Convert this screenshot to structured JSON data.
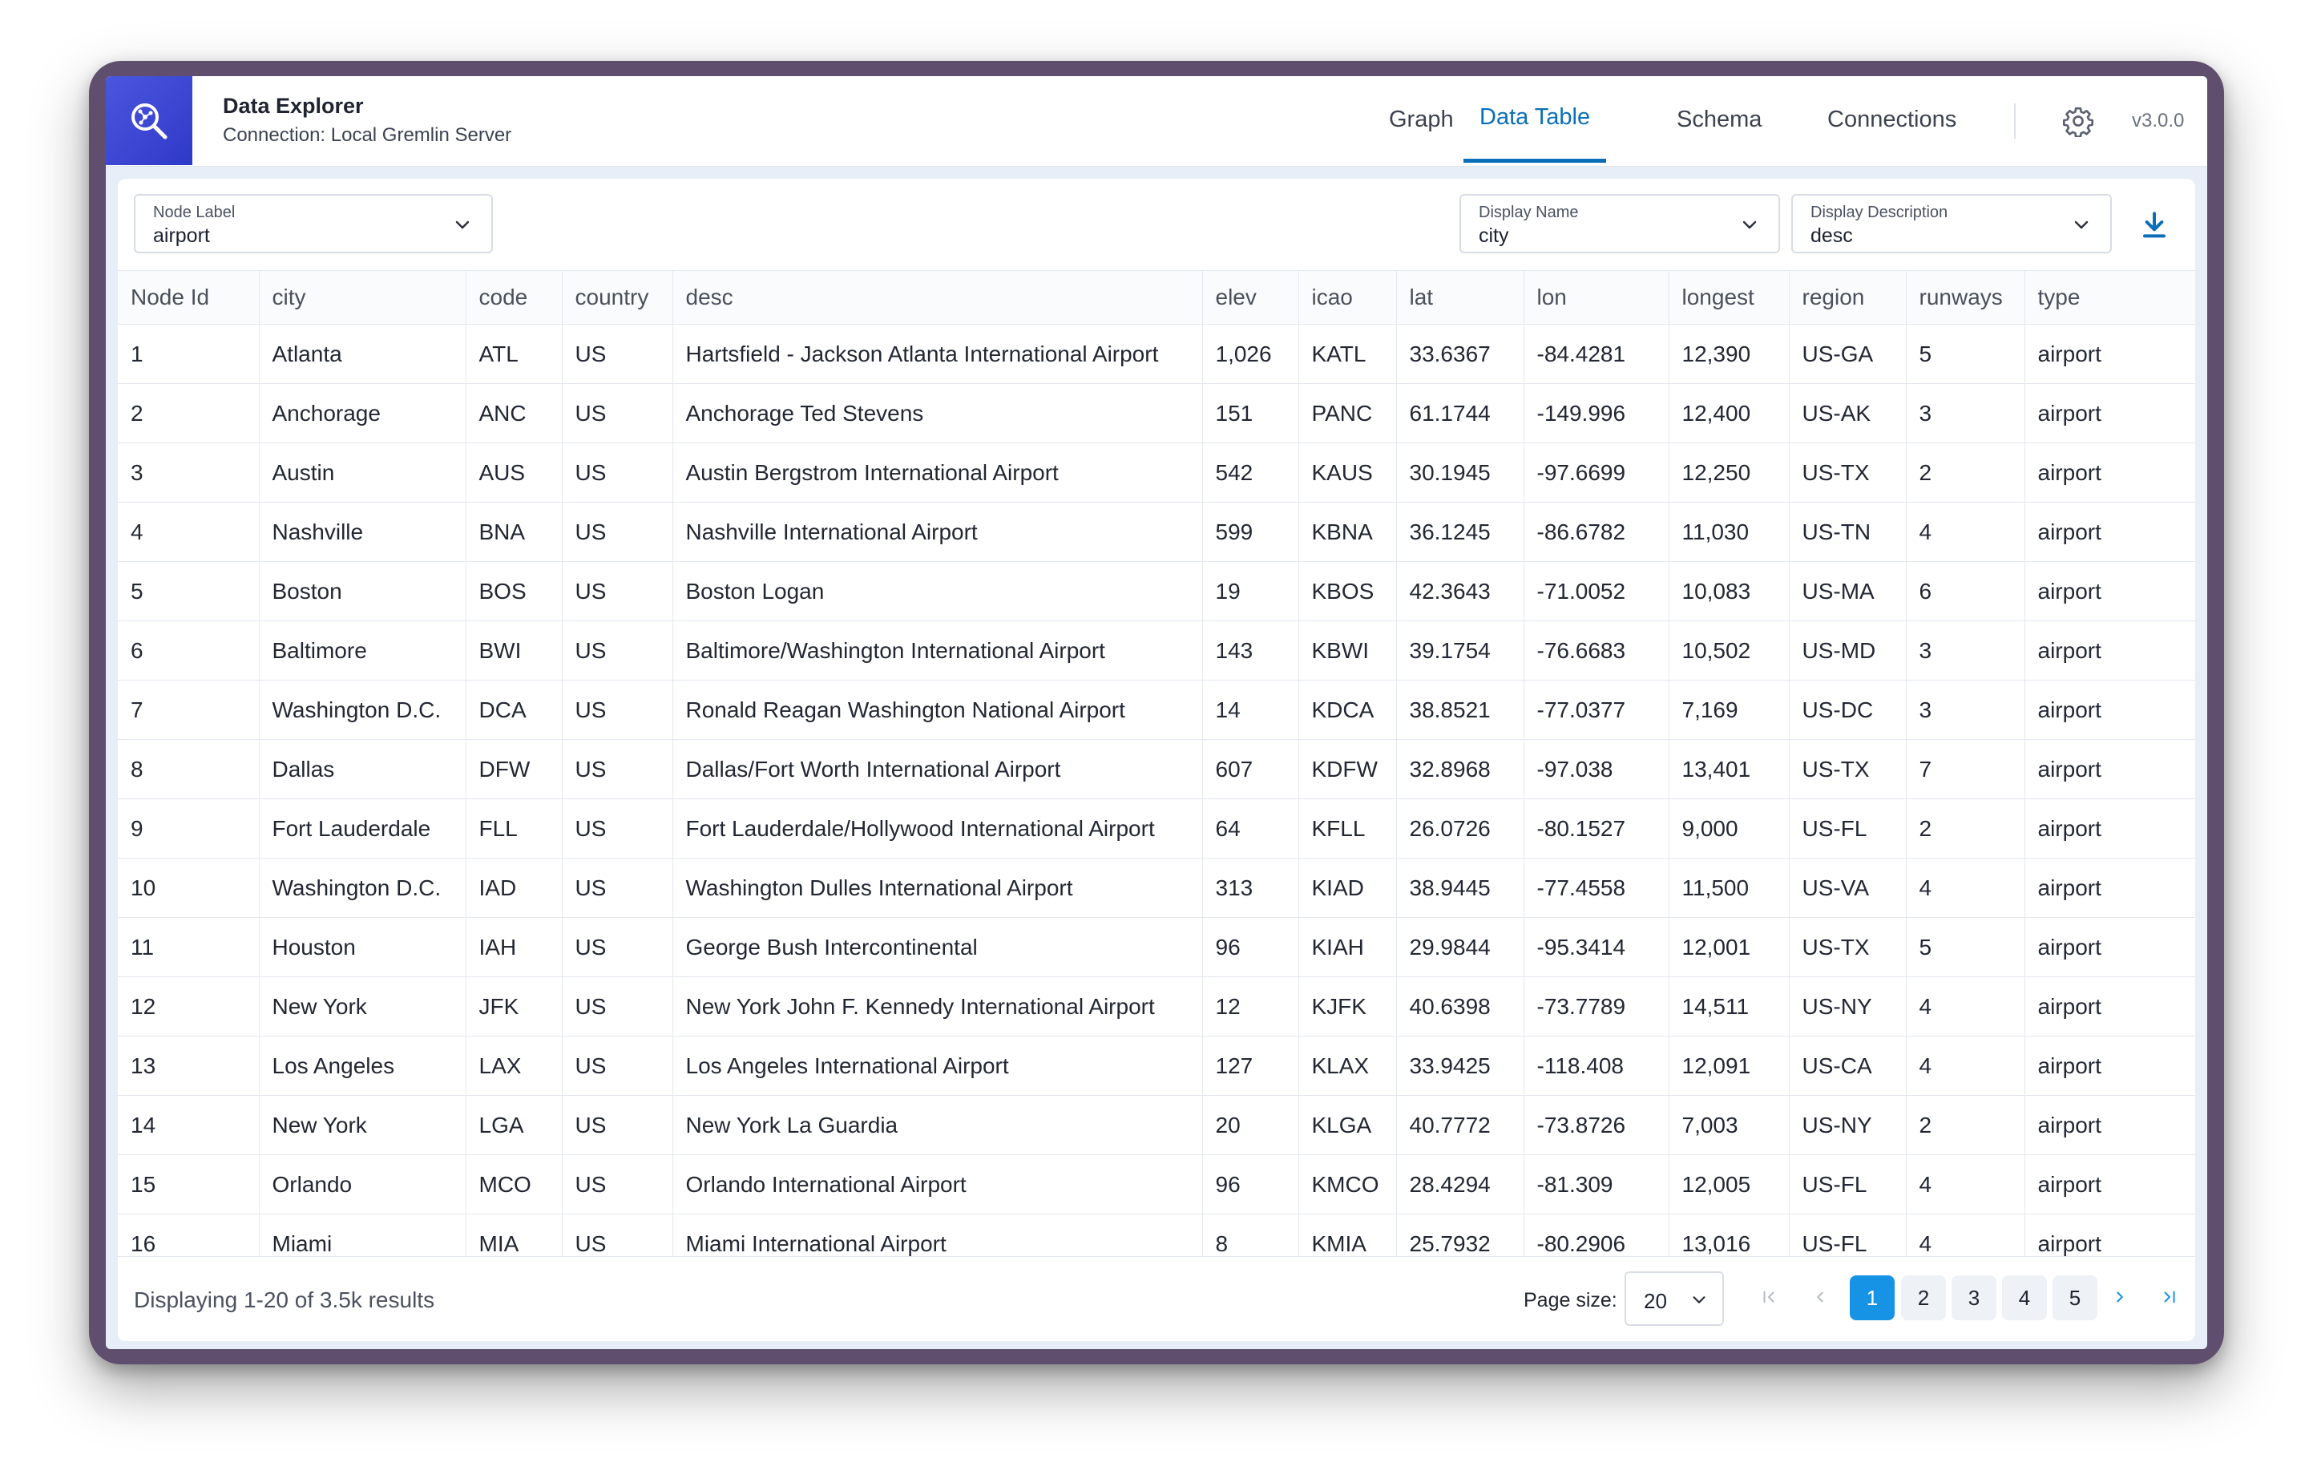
{
  "header": {
    "title": "Data Explorer",
    "connection": "Connection: Local Gremlin Server",
    "logo_icon": "search-graph-icon",
    "tabs": [
      {
        "label": "Graph",
        "active": false
      },
      {
        "label": "Data Table",
        "active": true
      },
      {
        "label": "Schema",
        "active": false
      },
      {
        "label": "Connections",
        "active": false
      }
    ],
    "settings_icon": "gear-icon",
    "version": "v3.0.0",
    "accent_color": "#0a6fb8"
  },
  "controls": {
    "node_label": {
      "label": "Node Label",
      "value": "airport"
    },
    "display_name": {
      "label": "Display Name",
      "value": "city"
    },
    "display_description": {
      "label": "Display Description",
      "value": "desc"
    },
    "download_icon": "download-icon"
  },
  "table": {
    "columns": [
      "Node Id",
      "city",
      "code",
      "country",
      "desc",
      "elev",
      "icao",
      "lat",
      "lon",
      "longest",
      "region",
      "runways",
      "type"
    ],
    "rows": [
      [
        "1",
        "Atlanta",
        "ATL",
        "US",
        "Hartsfield - Jackson Atlanta International Airport",
        "1,026",
        "KATL",
        "33.6367",
        "-84.4281",
        "12,390",
        "US-GA",
        "5",
        "airport"
      ],
      [
        "2",
        "Anchorage",
        "ANC",
        "US",
        "Anchorage Ted Stevens",
        "151",
        "PANC",
        "61.1744",
        "-149.996",
        "12,400",
        "US-AK",
        "3",
        "airport"
      ],
      [
        "3",
        "Austin",
        "AUS",
        "US",
        "Austin Bergstrom International Airport",
        "542",
        "KAUS",
        "30.1945",
        "-97.6699",
        "12,250",
        "US-TX",
        "2",
        "airport"
      ],
      [
        "4",
        "Nashville",
        "BNA",
        "US",
        "Nashville International Airport",
        "599",
        "KBNA",
        "36.1245",
        "-86.6782",
        "11,030",
        "US-TN",
        "4",
        "airport"
      ],
      [
        "5",
        "Boston",
        "BOS",
        "US",
        "Boston Logan",
        "19",
        "KBOS",
        "42.3643",
        "-71.0052",
        "10,083",
        "US-MA",
        "6",
        "airport"
      ],
      [
        "6",
        "Baltimore",
        "BWI",
        "US",
        "Baltimore/Washington International Airport",
        "143",
        "KBWI",
        "39.1754",
        "-76.6683",
        "10,502",
        "US-MD",
        "3",
        "airport"
      ],
      [
        "7",
        "Washington D.C.",
        "DCA",
        "US",
        "Ronald Reagan Washington National Airport",
        "14",
        "KDCA",
        "38.8521",
        "-77.0377",
        "7,169",
        "US-DC",
        "3",
        "airport"
      ],
      [
        "8",
        "Dallas",
        "DFW",
        "US",
        "Dallas/Fort Worth International Airport",
        "607",
        "KDFW",
        "32.8968",
        "-97.038",
        "13,401",
        "US-TX",
        "7",
        "airport"
      ],
      [
        "9",
        "Fort Lauderdale",
        "FLL",
        "US",
        "Fort Lauderdale/Hollywood International Airport",
        "64",
        "KFLL",
        "26.0726",
        "-80.1527",
        "9,000",
        "US-FL",
        "2",
        "airport"
      ],
      [
        "10",
        "Washington D.C.",
        "IAD",
        "US",
        "Washington Dulles International Airport",
        "313",
        "KIAD",
        "38.9445",
        "-77.4558",
        "11,500",
        "US-VA",
        "4",
        "airport"
      ],
      [
        "11",
        "Houston",
        "IAH",
        "US",
        "George Bush Intercontinental",
        "96",
        "KIAH",
        "29.9844",
        "-95.3414",
        "12,001",
        "US-TX",
        "5",
        "airport"
      ],
      [
        "12",
        "New York",
        "JFK",
        "US",
        "New York John F. Kennedy International Airport",
        "12",
        "KJFK",
        "40.6398",
        "-73.7789",
        "14,511",
        "US-NY",
        "4",
        "airport"
      ],
      [
        "13",
        "Los Angeles",
        "LAX",
        "US",
        "Los Angeles International Airport",
        "127",
        "KLAX",
        "33.9425",
        "-118.408",
        "12,091",
        "US-CA",
        "4",
        "airport"
      ],
      [
        "14",
        "New York",
        "LGA",
        "US",
        "New York La Guardia",
        "20",
        "KLGA",
        "40.7772",
        "-73.8726",
        "7,003",
        "US-NY",
        "2",
        "airport"
      ],
      [
        "15",
        "Orlando",
        "MCO",
        "US",
        "Orlando International Airport",
        "96",
        "KMCO",
        "28.4294",
        "-81.309",
        "12,005",
        "US-FL",
        "4",
        "airport"
      ],
      [
        "16",
        "Miami",
        "MIA",
        "US",
        "Miami International Airport",
        "8",
        "KMIA",
        "25.7932",
        "-80.2906",
        "13,016",
        "US-FL",
        "4",
        "airport"
      ]
    ]
  },
  "footer": {
    "count_text": "Displaying 1-20 of 3.5k results",
    "page_size_label": "Page size:",
    "page_size": "20",
    "pages": [
      "1",
      "2",
      "3",
      "4",
      "5"
    ],
    "current_page": "1",
    "nav_icons": [
      "first-page-icon",
      "previous-page-icon",
      "next-page-icon",
      "last-page-icon"
    ]
  }
}
